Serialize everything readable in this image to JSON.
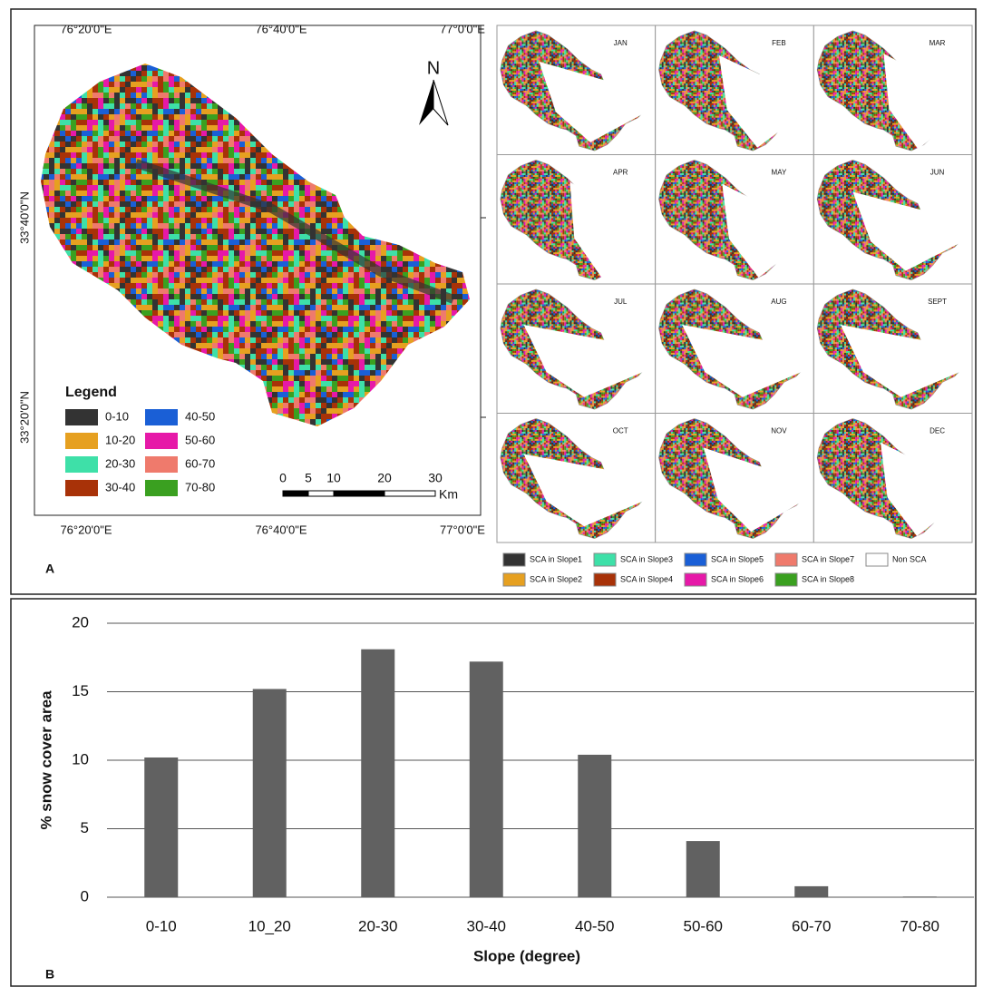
{
  "panel_a": {
    "label": "A",
    "map": {
      "lon_labels_top": [
        "76°20'0\"E",
        "76°40'0\"E",
        "77°0'0\"E"
      ],
      "lon_labels_bottom": [
        "76°20'0\"E",
        "76°40'0\"E",
        "77°0'0\"E"
      ],
      "lat_labels": [
        "33°40'0\"N",
        "33°20'0\"N"
      ],
      "north": "N",
      "legend_title": "Legend",
      "legend": [
        {
          "label": "0-10",
          "color": "#333333"
        },
        {
          "label": "10-20",
          "color": "#e6a020"
        },
        {
          "label": "20-30",
          "color": "#3ee0a8"
        },
        {
          "label": "30-40",
          "color": "#a83208"
        },
        {
          "label": "40-50",
          "color": "#1a5fd6"
        },
        {
          "label": "50-60",
          "color": "#e619a8"
        },
        {
          "label": "60-70",
          "color": "#ef7a6c"
        },
        {
          "label": "70-80",
          "color": "#3aa020"
        }
      ],
      "scale_ticks": [
        0,
        5,
        10,
        20,
        30
      ],
      "scale_unit": "Km"
    },
    "monthly": {
      "months": [
        "JAN",
        "FEB",
        "MAR",
        "APR",
        "MAY",
        "JUN",
        "JUL",
        "AUG",
        "SEPT",
        "OCT",
        "NOV",
        "DEC"
      ],
      "legend": [
        {
          "label": "SCA in Slope1",
          "color": "#333333"
        },
        {
          "label": "SCA in Slope2",
          "color": "#e6a020"
        },
        {
          "label": "SCA in Slope3",
          "color": "#3ee0a8"
        },
        {
          "label": "SCA in Slope4",
          "color": "#a83208"
        },
        {
          "label": "SCA in Slope5",
          "color": "#1a5fd6"
        },
        {
          "label": "SCA in Slope6",
          "color": "#e619a8"
        },
        {
          "label": "SCA in Slope7",
          "color": "#ef7a6c"
        },
        {
          "label": "SCA in Slope8",
          "color": "#3aa020"
        },
        {
          "label": "Non SCA",
          "color": "#ffffff"
        }
      ]
    }
  },
  "chart_data": {
    "type": "bar",
    "panel_label": "B",
    "x_label": "Slope (degree)",
    "y_label": "% snow cover area",
    "categories": [
      "0-10",
      "10_20",
      "20-30",
      "30-40",
      "40-50",
      "50-60",
      "60-70",
      "70-80"
    ],
    "values": [
      10.2,
      15.2,
      18.1,
      17.2,
      10.4,
      4.1,
      0.8,
      0.05
    ],
    "color": "#616161",
    "ylim": [
      0,
      20
    ],
    "yticks": [
      0,
      5,
      10,
      15,
      20
    ],
    "grid": true
  }
}
